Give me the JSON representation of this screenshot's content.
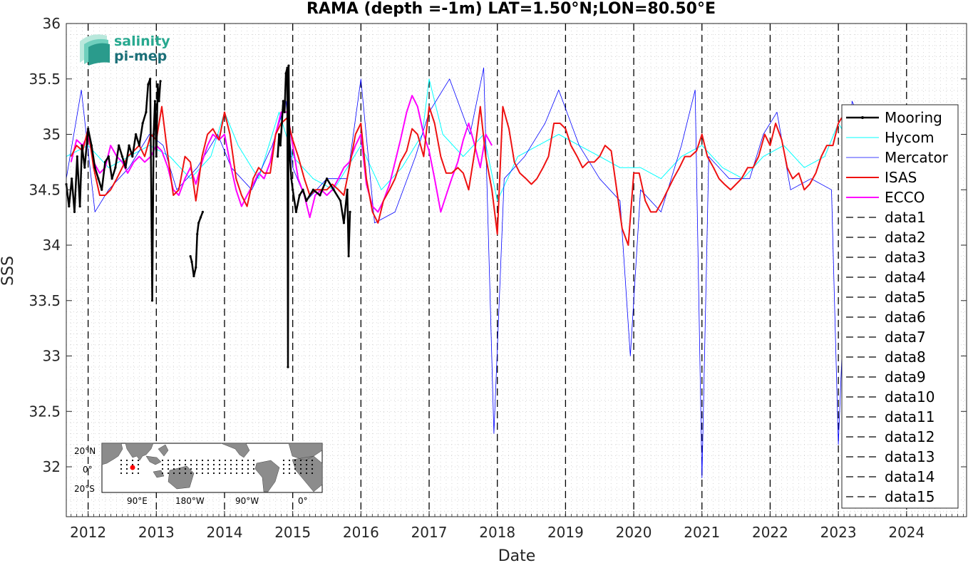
{
  "chart_data": {
    "type": "line",
    "title": "RAMA (depth =-1m) LAT=1.50°N;LON=80.50°E",
    "xlabel": "Date",
    "ylabel": "SSS",
    "xlim": [
      2011.68,
      2024.88
    ],
    "ylim": [
      31.55,
      36.0
    ],
    "x_ticks": [
      2012,
      2013,
      2014,
      2015,
      2016,
      2017,
      2018,
      2019,
      2020,
      2021,
      2022,
      2023,
      2024
    ],
    "y_ticks": [
      32,
      32.5,
      33,
      33.5,
      34,
      34.5,
      35,
      35.5,
      36
    ],
    "y_tick_labels": [
      "32",
      "32.5",
      "33",
      "33.5",
      "34",
      "34.5",
      "35",
      "35.5",
      "36"
    ],
    "grid": true,
    "legend_position": "right",
    "series": [
      {
        "name": "Mooring",
        "color": "#000000",
        "width": 2.5,
        "marker": "dot",
        "segments": [
          {
            "x": [
              2011.68,
              2011.72,
              2011.76,
              2011.8,
              2011.84,
              2011.88,
              2011.91,
              2011.95,
              2012.0,
              2012.05,
              2012.1,
              2012.15,
              2012.2,
              2012.25,
              2012.3,
              2012.35,
              2012.4,
              2012.45,
              2012.5,
              2012.55,
              2012.6,
              2012.65,
              2012.7,
              2012.75,
              2012.8,
              2012.85,
              2012.88,
              2012.91,
              2012.94,
              2012.96,
              2012.98,
              2013.0,
              2013.02,
              2013.04,
              2013.06
            ],
            "y": [
              34.55,
              34.35,
              34.6,
              34.3,
              34.8,
              34.35,
              34.9,
              34.7,
              35.05,
              34.9,
              34.7,
              34.6,
              34.5,
              34.75,
              34.8,
              34.6,
              34.7,
              34.9,
              34.8,
              34.7,
              34.9,
              34.8,
              35.0,
              34.9,
              35.1,
              35.2,
              35.45,
              35.5,
              33.5,
              35.0,
              35.3,
              34.8,
              35.45,
              35.3,
              35.48
            ]
          },
          {
            "x": [
              2013.5,
              2013.52,
              2013.55,
              2013.58,
              2013.6,
              2013.62,
              2013.65,
              2013.68
            ],
            "y": [
              33.9,
              33.85,
              33.72,
              33.8,
              34.1,
              34.2,
              34.25,
              34.3
            ]
          },
          {
            "x": [
              2014.78,
              2014.8,
              2014.82,
              2014.84,
              2014.86,
              2014.88,
              2014.9,
              2014.92,
              2014.93,
              2014.94,
              2014.95,
              2014.96,
              2014.98,
              2015.0,
              2015.05,
              2015.1,
              2015.15,
              2015.2,
              2015.3,
              2015.4,
              2015.5,
              2015.6,
              2015.7,
              2015.75,
              2015.8,
              2015.82,
              2015.84
            ],
            "y": [
              34.8,
              35.0,
              34.9,
              35.1,
              35.3,
              35.2,
              35.55,
              35.6,
              32.9,
              35.62,
              35.0,
              34.8,
              34.6,
              34.5,
              34.3,
              34.45,
              34.5,
              34.4,
              34.5,
              34.45,
              34.6,
              34.5,
              34.4,
              34.2,
              34.5,
              33.9,
              34.3
            ]
          }
        ]
      },
      {
        "name": "Hycom",
        "color": "#00ffff",
        "width": 1,
        "marker": "none",
        "x": [
          2011.68,
          2012.0,
          2012.3,
          2012.6,
          2012.9,
          2013.2,
          2013.5,
          2013.8,
          2014.0,
          2014.2,
          2014.5,
          2014.8,
          2015.0,
          2015.3,
          2015.6,
          2016.0,
          2016.3,
          2016.6,
          2016.9,
          2017.0,
          2017.2,
          2017.5,
          2017.8,
          2018.0,
          2018.3,
          2018.6,
          2018.9,
          2019.2,
          2019.5,
          2019.8,
          2020.1,
          2020.4,
          2020.7,
          2021.0,
          2021.3,
          2021.6,
          2021.9,
          2022.2,
          2022.5,
          2022.8,
          2023.0,
          2023.1
        ],
        "y": [
          34.8,
          34.9,
          34.7,
          34.8,
          34.9,
          34.8,
          34.6,
          34.8,
          35.2,
          34.9,
          34.6,
          35.2,
          34.8,
          34.6,
          34.5,
          34.9,
          34.5,
          34.7,
          35.0,
          35.5,
          35.0,
          34.8,
          35.0,
          34.4,
          34.8,
          34.9,
          35.0,
          34.9,
          34.8,
          34.7,
          34.7,
          34.6,
          34.8,
          34.9,
          34.7,
          34.6,
          34.8,
          34.9,
          34.7,
          34.8,
          35.1,
          35.0
        ]
      },
      {
        "name": "Mercator",
        "color": "#0000ff",
        "width": 0.8,
        "marker": "none",
        "x": [
          2011.68,
          2011.9,
          2012.1,
          2012.3,
          2012.6,
          2012.9,
          2013.1,
          2013.3,
          2013.6,
          2013.9,
          2014.1,
          2014.4,
          2014.7,
          2014.9,
          2015.0,
          2015.2,
          2015.5,
          2015.8,
          2016.0,
          2016.2,
          2016.5,
          2016.8,
          2017.0,
          2017.3,
          2017.6,
          2017.8,
          2017.95,
          2018.1,
          2018.4,
          2018.7,
          2018.9,
          2019.2,
          2019.5,
          2019.8,
          2019.95,
          2020.1,
          2020.4,
          2020.7,
          2020.9,
          2021.0,
          2021.1,
          2021.4,
          2021.7,
          2021.9,
          2022.1,
          2022.3,
          2022.6,
          2022.9,
          2023.0,
          2023.2,
          2023.5,
          2023.8
        ],
        "y": [
          34.6,
          35.4,
          34.3,
          34.5,
          34.7,
          35.0,
          34.9,
          34.5,
          34.7,
          35.0,
          34.7,
          34.5,
          34.9,
          35.3,
          34.7,
          34.4,
          34.6,
          34.6,
          35.5,
          34.2,
          34.3,
          34.8,
          35.2,
          35.5,
          35.0,
          35.6,
          32.3,
          34.6,
          34.8,
          35.1,
          35.4,
          34.9,
          34.6,
          34.4,
          33.0,
          34.5,
          34.3,
          34.9,
          35.4,
          31.9,
          34.8,
          34.6,
          34.6,
          35.0,
          35.2,
          34.5,
          34.6,
          34.5,
          32.2,
          35.3,
          34.9,
          35.1
        ]
      },
      {
        "name": "ISAS",
        "color": "#ee1111",
        "width": 2,
        "marker": "none",
        "x": [
          2011.75,
          2011.83,
          2011.92,
          2012.0,
          2012.08,
          2012.17,
          2012.25,
          2012.33,
          2012.42,
          2012.5,
          2012.58,
          2012.67,
          2012.75,
          2012.83,
          2012.92,
          2013.0,
          2013.08,
          2013.17,
          2013.25,
          2013.33,
          2013.42,
          2013.5,
          2013.58,
          2013.67,
          2013.75,
          2013.83,
          2013.92,
          2014.0,
          2014.08,
          2014.17,
          2014.25,
          2014.33,
          2014.42,
          2014.5,
          2014.58,
          2014.67,
          2014.75,
          2014.83,
          2014.92,
          2015.0,
          2015.08,
          2015.17,
          2015.25,
          2015.33,
          2015.42,
          2015.5,
          2015.58,
          2015.67,
          2015.75,
          2015.83,
          2015.92,
          2016.0,
          2016.08,
          2016.17,
          2016.25,
          2016.33,
          2016.42,
          2016.5,
          2016.58,
          2016.67,
          2016.75,
          2016.83,
          2016.92,
          2017.0,
          2017.08,
          2017.17,
          2017.25,
          2017.33,
          2017.42,
          2017.5,
          2017.58,
          2017.67,
          2017.75,
          2017.83,
          2017.92,
          2018.0,
          2018.08,
          2018.17,
          2018.25,
          2018.33,
          2018.42,
          2018.5,
          2018.58,
          2018.67,
          2018.75,
          2018.83,
          2018.92,
          2019.0,
          2019.08,
          2019.17,
          2019.25,
          2019.33,
          2019.42,
          2019.5,
          2019.58,
          2019.67,
          2019.75,
          2019.83,
          2019.92,
          2020.0,
          2020.08,
          2020.17,
          2020.25,
          2020.33,
          2020.42,
          2020.5,
          2020.58,
          2020.67,
          2020.75,
          2020.83,
          2020.92,
          2021.0,
          2021.08,
          2021.17,
          2021.25,
          2021.33,
          2021.42,
          2021.5,
          2021.58,
          2021.67,
          2021.75,
          2021.83,
          2021.92,
          2022.0,
          2022.08,
          2022.17,
          2022.25,
          2022.33,
          2022.42,
          2022.5,
          2022.58,
          2022.67,
          2022.75,
          2022.83,
          2022.92,
          2023.0,
          2023.05
        ],
        "y": [
          34.8,
          34.9,
          34.85,
          35.05,
          34.7,
          34.45,
          34.45,
          34.5,
          34.6,
          34.7,
          34.8,
          34.85,
          34.9,
          34.8,
          35.0,
          34.95,
          35.25,
          34.8,
          34.45,
          34.5,
          34.8,
          34.75,
          34.4,
          34.8,
          35.0,
          35.05,
          34.95,
          35.2,
          35.0,
          34.6,
          34.45,
          34.35,
          34.6,
          34.7,
          34.65,
          34.65,
          35.0,
          35.1,
          35.15,
          34.95,
          34.8,
          34.6,
          34.45,
          34.5,
          34.5,
          34.5,
          34.55,
          34.5,
          34.45,
          34.7,
          35.0,
          35.1,
          34.6,
          34.3,
          34.2,
          34.4,
          34.5,
          34.6,
          34.75,
          34.85,
          35.05,
          35.0,
          34.8,
          35.25,
          35.1,
          34.8,
          34.65,
          34.65,
          34.7,
          34.65,
          34.5,
          34.85,
          35.25,
          34.8,
          34.5,
          34.1,
          35.25,
          35.05,
          34.75,
          34.65,
          34.6,
          34.55,
          34.6,
          34.7,
          34.8,
          35.1,
          35.1,
          35.05,
          34.9,
          34.8,
          34.7,
          34.75,
          34.75,
          34.8,
          34.9,
          34.85,
          34.5,
          34.15,
          34.0,
          34.65,
          34.65,
          34.4,
          34.3,
          34.3,
          34.4,
          34.5,
          34.6,
          34.7,
          34.8,
          34.8,
          34.85,
          35.0,
          34.8,
          34.7,
          34.6,
          34.55,
          34.5,
          34.55,
          34.6,
          34.7,
          34.7,
          34.8,
          35.0,
          34.9,
          35.1,
          34.95,
          34.7,
          34.6,
          34.65,
          34.5,
          34.55,
          34.65,
          34.8,
          34.9,
          34.9,
          35.1,
          35.15
        ]
      },
      {
        "name": "ECCO",
        "color": "#ff00ff",
        "width": 2,
        "marker": "none",
        "x": [
          2011.75,
          2011.83,
          2011.92,
          2012.0,
          2012.08,
          2012.17,
          2012.25,
          2012.33,
          2012.42,
          2012.5,
          2012.58,
          2012.67,
          2012.75,
          2012.83,
          2012.92,
          2013.0,
          2013.08,
          2013.17,
          2013.25,
          2013.33,
          2013.42,
          2013.5,
          2013.58,
          2013.67,
          2013.75,
          2013.83,
          2013.92,
          2014.0,
          2014.08,
          2014.17,
          2014.25,
          2014.33,
          2014.42,
          2014.5,
          2014.58,
          2014.67,
          2014.75,
          2014.83,
          2014.92,
          2015.0,
          2015.08,
          2015.17,
          2015.25,
          2015.33,
          2015.42,
          2015.5,
          2015.58,
          2015.67,
          2015.75,
          2015.83,
          2015.92,
          2016.0,
          2016.08,
          2016.17,
          2016.25,
          2016.33,
          2016.42,
          2016.5,
          2016.58,
          2016.67,
          2016.75,
          2016.83,
          2016.92,
          2017.0,
          2017.08,
          2017.17,
          2017.25,
          2017.33,
          2017.42,
          2017.5,
          2017.58,
          2017.67,
          2017.75,
          2017.83,
          2017.92
        ],
        "y": [
          34.75,
          34.95,
          34.9,
          35.0,
          34.75,
          34.65,
          34.7,
          34.9,
          34.8,
          34.75,
          34.65,
          34.75,
          34.8,
          34.75,
          34.8,
          34.9,
          34.85,
          34.7,
          34.5,
          34.45,
          34.6,
          34.7,
          34.55,
          34.75,
          34.9,
          35.0,
          34.95,
          35.0,
          34.75,
          34.5,
          34.35,
          34.45,
          34.55,
          34.65,
          34.6,
          34.75,
          35.0,
          35.2,
          35.2,
          34.9,
          34.6,
          34.45,
          34.25,
          34.45,
          34.5,
          34.45,
          34.5,
          34.6,
          34.7,
          34.75,
          34.9,
          35.0,
          34.55,
          34.35,
          34.3,
          34.4,
          34.55,
          34.75,
          34.95,
          35.2,
          35.35,
          35.25,
          35.0,
          34.85,
          34.6,
          34.3,
          34.45,
          34.6,
          34.75,
          34.95,
          35.1,
          34.9,
          34.7,
          35.0,
          34.9
        ]
      }
    ],
    "data_legend": [
      "data1",
      "data2",
      "data3",
      "data4",
      "data5",
      "data6",
      "data7",
      "data8",
      "data9",
      "data10",
      "data11",
      "data12",
      "data13",
      "data14",
      "data15"
    ],
    "vertical_dashed_lines_x": [
      2012,
      2013,
      2014,
      2015,
      2016,
      2017,
      2018,
      2019,
      2020,
      2021,
      2022,
      2023,
      2024
    ]
  },
  "logo": {
    "line1": "salinity",
    "line2": "pi-mep"
  },
  "inset_map": {
    "lat_labels": [
      "20°N",
      "0°",
      "20°S"
    ],
    "lon_labels": [
      "90°E",
      "180°W",
      "90°W",
      "0°"
    ]
  }
}
